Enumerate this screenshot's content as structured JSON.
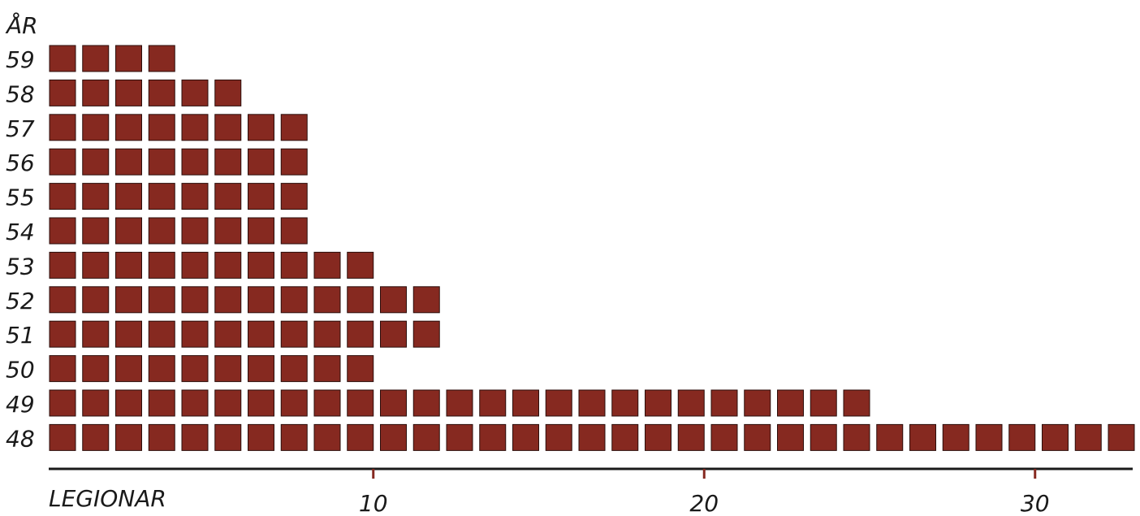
{
  "chart_data": {
    "type": "bar",
    "title": "",
    "ylabel": "ÅR",
    "xlabel": "LEGIONAR",
    "categories": [
      "59",
      "58",
      "57",
      "56",
      "55",
      "54",
      "53",
      "52",
      "51",
      "50",
      "49",
      "48"
    ],
    "values": [
      4,
      6,
      8,
      8,
      8,
      8,
      10,
      12,
      12,
      10,
      25,
      33
    ],
    "x_ticks": [
      10,
      20,
      30
    ],
    "grid": false,
    "legend": "none",
    "unit_style": "one square per legion",
    "colors": {
      "square_fill": "#862920",
      "square_stroke": "#2b0e0b",
      "axis": "#1a1a1a",
      "tick": "#862920",
      "text": "#1a1a1a"
    }
  }
}
